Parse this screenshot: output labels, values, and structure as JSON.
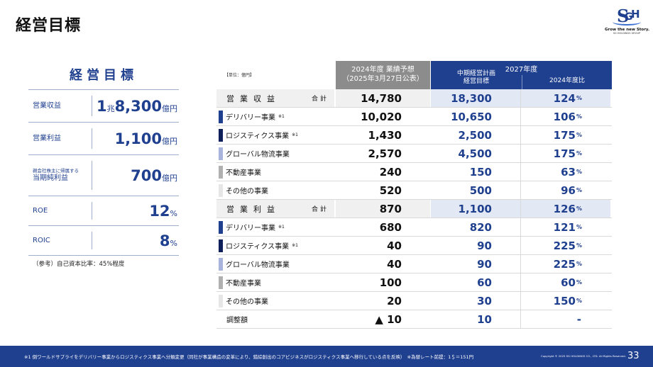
{
  "header": {
    "title": "経営目標"
  },
  "logo": {
    "mark_s": "S",
    "mark_g": "G",
    "mark_h": "H",
    "tagline": "Grow the new Story.",
    "sub": "SG HOLDINGS GROUP"
  },
  "left": {
    "heading": "経営目標",
    "kpis": [
      {
        "label": "営業収益",
        "label_small": "",
        "big1": "1",
        "small1": "兆",
        "big2": "8,300",
        "unit": "億円"
      },
      {
        "label": "営業利益",
        "label_small": "",
        "big1": "1,100",
        "small1": "",
        "big2": "",
        "unit": "億円"
      },
      {
        "label": "当期純利益",
        "label_small": "親会社株主に帰属する",
        "big1": "700",
        "small1": "",
        "big2": "",
        "unit": "億円"
      },
      {
        "label": "ROE",
        "label_small": "",
        "big1": "12",
        "small1": "",
        "big2": "",
        "unit": "%"
      },
      {
        "label": "ROIC",
        "label_small": "",
        "big1": "8",
        "small1": "",
        "big2": "",
        "unit": "%"
      }
    ],
    "note": "（参考）自己資本比率：45%程度"
  },
  "table": {
    "unit": "【単位：億円】",
    "col_2024_line1": "2024年度 業績予想",
    "col_2024_line2": "（2025年3月27日公表）",
    "col_2027": "2027年度",
    "col_plan_line1": "中期経営計画",
    "col_plan_line2": "経営目標",
    "col_pct": "2024年度比",
    "rows": [
      {
        "type": "total",
        "label": "営業収益",
        "sum": "合計",
        "mark": "",
        "bar": "",
        "actual": "14,780",
        "plan": "18,300",
        "pct": "124",
        "pct_unit": "%"
      },
      {
        "type": "item",
        "label": "デリバリー事業",
        "mark": "※1",
        "bar": "#1f3f8f",
        "actual": "10,020",
        "plan": "10,650",
        "pct": "106",
        "pct_unit": "%"
      },
      {
        "type": "item",
        "label": "ロジスティクス事業",
        "mark": "※1",
        "bar": "#0f1f5a",
        "actual": "1,430",
        "plan": "2,500",
        "pct": "175",
        "pct_unit": "%"
      },
      {
        "type": "item",
        "label": "グローバル物流事業",
        "mark": "",
        "bar": "#a9b4dc",
        "actual": "2,570",
        "plan": "4,500",
        "pct": "175",
        "pct_unit": "%"
      },
      {
        "type": "item",
        "label": "不動産事業",
        "mark": "",
        "bar": "#b0b0b0",
        "actual": "240",
        "plan": "150",
        "pct": "63",
        "pct_unit": "%"
      },
      {
        "type": "item",
        "label": "その他の事業",
        "mark": "",
        "bar": "#e6e6e6",
        "actual": "520",
        "plan": "500",
        "pct": "96",
        "pct_unit": "%"
      },
      {
        "type": "total",
        "label": "営業利益",
        "sum": "合計",
        "mark": "",
        "bar": "",
        "actual": "870",
        "plan": "1,100",
        "pct": "126",
        "pct_unit": "%"
      },
      {
        "type": "item",
        "label": "デリバリー事業",
        "mark": "※1",
        "bar": "#1f3f8f",
        "actual": "680",
        "plan": "820",
        "pct": "121",
        "pct_unit": "%"
      },
      {
        "type": "item",
        "label": "ロジスティクス事業",
        "mark": "※1",
        "bar": "#0f1f5a",
        "actual": "40",
        "plan": "90",
        "pct": "225",
        "pct_unit": "%"
      },
      {
        "type": "item",
        "label": "グローバル物流事業",
        "mark": "",
        "bar": "#a9b4dc",
        "actual": "40",
        "plan": "90",
        "pct": "225",
        "pct_unit": "%"
      },
      {
        "type": "item",
        "label": "不動産事業",
        "mark": "",
        "bar": "#b0b0b0",
        "actual": "100",
        "plan": "60",
        "pct": "60",
        "pct_unit": "%"
      },
      {
        "type": "item",
        "label": "その他の事業",
        "mark": "",
        "bar": "#e6e6e6",
        "actual": "20",
        "plan": "30",
        "pct": "150",
        "pct_unit": "%"
      },
      {
        "type": "plain",
        "label": "調整額",
        "mark": "",
        "bar": "",
        "actual": "▲ 10",
        "plan": "10",
        "pct": "-",
        "pct_unit": ""
      }
    ]
  },
  "footer": {
    "note": "※1 倒ワールドサプライをデリバリー事業からロジスティクス事業へ分類変更（同社が事業構造の変革により、錯綜創出のコアビジネスがロジスティクス事業へ移行している点を反映）　※為替レート前提：1＄＝151円",
    "copyright": "Copyright © 2025 SG HOLDINGS CO., LTD. All Rights Reserved.",
    "page": "33"
  },
  "colors": {
    "brand": "#1f3f8f",
    "gray_header": "#8c8c8c"
  }
}
